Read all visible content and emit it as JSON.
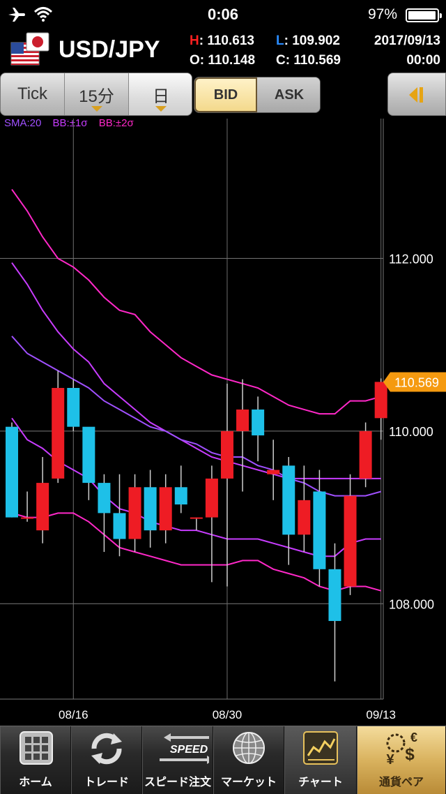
{
  "status": {
    "time": "0:06",
    "battery": "97%",
    "battery_level": 0.97
  },
  "header": {
    "pair": "USD/JPY",
    "high_label": "H",
    "high": "110.613",
    "low_label": "L",
    "low": "109.902",
    "open_label": "O",
    "open": "110.148",
    "close_label": "C",
    "close": "110.569",
    "date": "2017/09/13",
    "time": "00:00",
    "colors": {
      "high": "#ff2020",
      "low": "#2a8cff"
    }
  },
  "toolbar": {
    "tick": "Tick",
    "interval": "15分",
    "period": "日",
    "bid": "BID",
    "ask": "ASK"
  },
  "legend": {
    "sma": "SMA:20",
    "bb1": "BB:±1σ",
    "bb2": "BB:±2σ",
    "colors": {
      "sma": "#a050ff",
      "bb1": "#c83cff",
      "bb2": "#ff28c8"
    }
  },
  "chart_data": {
    "type": "candlestick",
    "y_ticks": [
      "112.000",
      "110.000",
      "108.000"
    ],
    "ylim": [
      106.895,
      113.62
    ],
    "x_labels": [
      "08/16",
      "08/30",
      "09/13"
    ],
    "x_label_index": [
      4,
      14,
      24
    ],
    "current_price": "110.569",
    "colors": {
      "up": "#ee1c24",
      "down": "#1ec0e8",
      "price_tag": "#f59a10"
    },
    "candles": [
      {
        "o": 110.05,
        "h": 110.1,
        "l": 109.0,
        "c": 109.0
      },
      {
        "o": 109.0,
        "h": 109.3,
        "l": 108.95,
        "c": 109.0
      },
      {
        "o": 108.85,
        "h": 109.7,
        "l": 108.7,
        "c": 109.4
      },
      {
        "o": 109.45,
        "h": 110.7,
        "l": 109.4,
        "c": 110.5
      },
      {
        "o": 110.5,
        "h": 110.6,
        "l": 110.0,
        "c": 110.05
      },
      {
        "o": 110.05,
        "h": 110.0,
        "l": 109.2,
        "c": 109.4
      },
      {
        "o": 109.4,
        "h": 109.5,
        "l": 108.6,
        "c": 109.05
      },
      {
        "o": 109.05,
        "h": 109.5,
        "l": 108.55,
        "c": 108.75
      },
      {
        "o": 108.75,
        "h": 109.5,
        "l": 108.6,
        "c": 109.35
      },
      {
        "o": 109.35,
        "h": 109.55,
        "l": 108.65,
        "c": 108.85
      },
      {
        "o": 108.85,
        "h": 109.5,
        "l": 108.7,
        "c": 109.35
      },
      {
        "o": 109.35,
        "h": 109.6,
        "l": 109.05,
        "c": 109.15
      },
      {
        "o": 109.0,
        "h": 109.0,
        "l": 108.85,
        "c": 109.0
      },
      {
        "o": 109.0,
        "h": 109.6,
        "l": 108.25,
        "c": 109.45
      },
      {
        "o": 109.45,
        "h": 110.55,
        "l": 108.2,
        "c": 110.0
      },
      {
        "o": 110.0,
        "h": 110.6,
        "l": 109.3,
        "c": 110.25
      },
      {
        "o": 110.25,
        "h": 110.4,
        "l": 109.65,
        "c": 109.95
      },
      {
        "o": 109.5,
        "h": 109.9,
        "l": 109.2,
        "c": 109.55
      },
      {
        "o": 109.6,
        "h": 109.7,
        "l": 108.45,
        "c": 108.8
      },
      {
        "o": 108.8,
        "h": 109.6,
        "l": 108.6,
        "c": 109.2
      },
      {
        "o": 109.3,
        "h": 109.55,
        "l": 108.2,
        "c": 108.4
      },
      {
        "o": 108.4,
        "h": 108.7,
        "l": 107.1,
        "c": 107.8
      },
      {
        "o": 108.2,
        "h": 109.5,
        "l": 108.1,
        "c": 109.25
      },
      {
        "o": 109.45,
        "h": 110.1,
        "l": 109.35,
        "c": 110.0
      },
      {
        "o": 110.15,
        "h": 110.61,
        "l": 109.9,
        "c": 110.57
      }
    ],
    "bands": {
      "bb_upper2": [
        112.8,
        112.55,
        112.25,
        112.0,
        111.9,
        111.75,
        111.55,
        111.4,
        111.35,
        111.15,
        111.0,
        110.85,
        110.75,
        110.65,
        110.6,
        110.55,
        110.5,
        110.4,
        110.3,
        110.25,
        110.2,
        110.2,
        110.35,
        110.35,
        110.4
      ],
      "bb_upper1": [
        111.95,
        111.7,
        111.4,
        111.15,
        110.95,
        110.8,
        110.55,
        110.4,
        110.25,
        110.1,
        110.0,
        109.9,
        109.8,
        109.7,
        109.65,
        109.6,
        109.55,
        109.5,
        109.45,
        109.45,
        109.45,
        109.45,
        109.45,
        109.45,
        109.45
      ],
      "sma": [
        111.1,
        110.9,
        110.8,
        110.7,
        110.6,
        110.5,
        110.35,
        110.25,
        110.15,
        110.05,
        110.0,
        109.9,
        109.85,
        109.75,
        109.7,
        109.7,
        109.6,
        109.55,
        109.45,
        109.4,
        109.3,
        109.25,
        109.25,
        109.25,
        109.3
      ],
      "bb_lower1": [
        110.15,
        109.9,
        109.8,
        109.65,
        109.55,
        109.45,
        109.25,
        109.1,
        109.05,
        108.95,
        108.9,
        108.85,
        108.85,
        108.8,
        108.75,
        108.75,
        108.75,
        108.7,
        108.65,
        108.6,
        108.55,
        108.55,
        108.7,
        108.75,
        108.75
      ],
      "bb_lower2": [
        109.05,
        109.0,
        109.0,
        109.05,
        109.05,
        108.95,
        108.8,
        108.65,
        108.6,
        108.55,
        108.5,
        108.45,
        108.45,
        108.45,
        108.45,
        108.5,
        108.5,
        108.4,
        108.35,
        108.3,
        108.2,
        108.15,
        108.2,
        108.2,
        108.15
      ]
    }
  },
  "tabs": [
    {
      "label": "ホーム",
      "icon": "grid-icon"
    },
    {
      "label": "トレード",
      "icon": "refresh-arrows-icon"
    },
    {
      "label": "スピード注文",
      "icon": "speed-arrows-icon",
      "badge": "SPEED"
    },
    {
      "label": "マーケット",
      "icon": "globe-icon"
    },
    {
      "label": "チャート",
      "icon": "chart-icon"
    },
    {
      "label": "通貨ペア",
      "icon": "currency-icon",
      "symbols": [
        "€",
        "¥",
        "$"
      ]
    }
  ]
}
